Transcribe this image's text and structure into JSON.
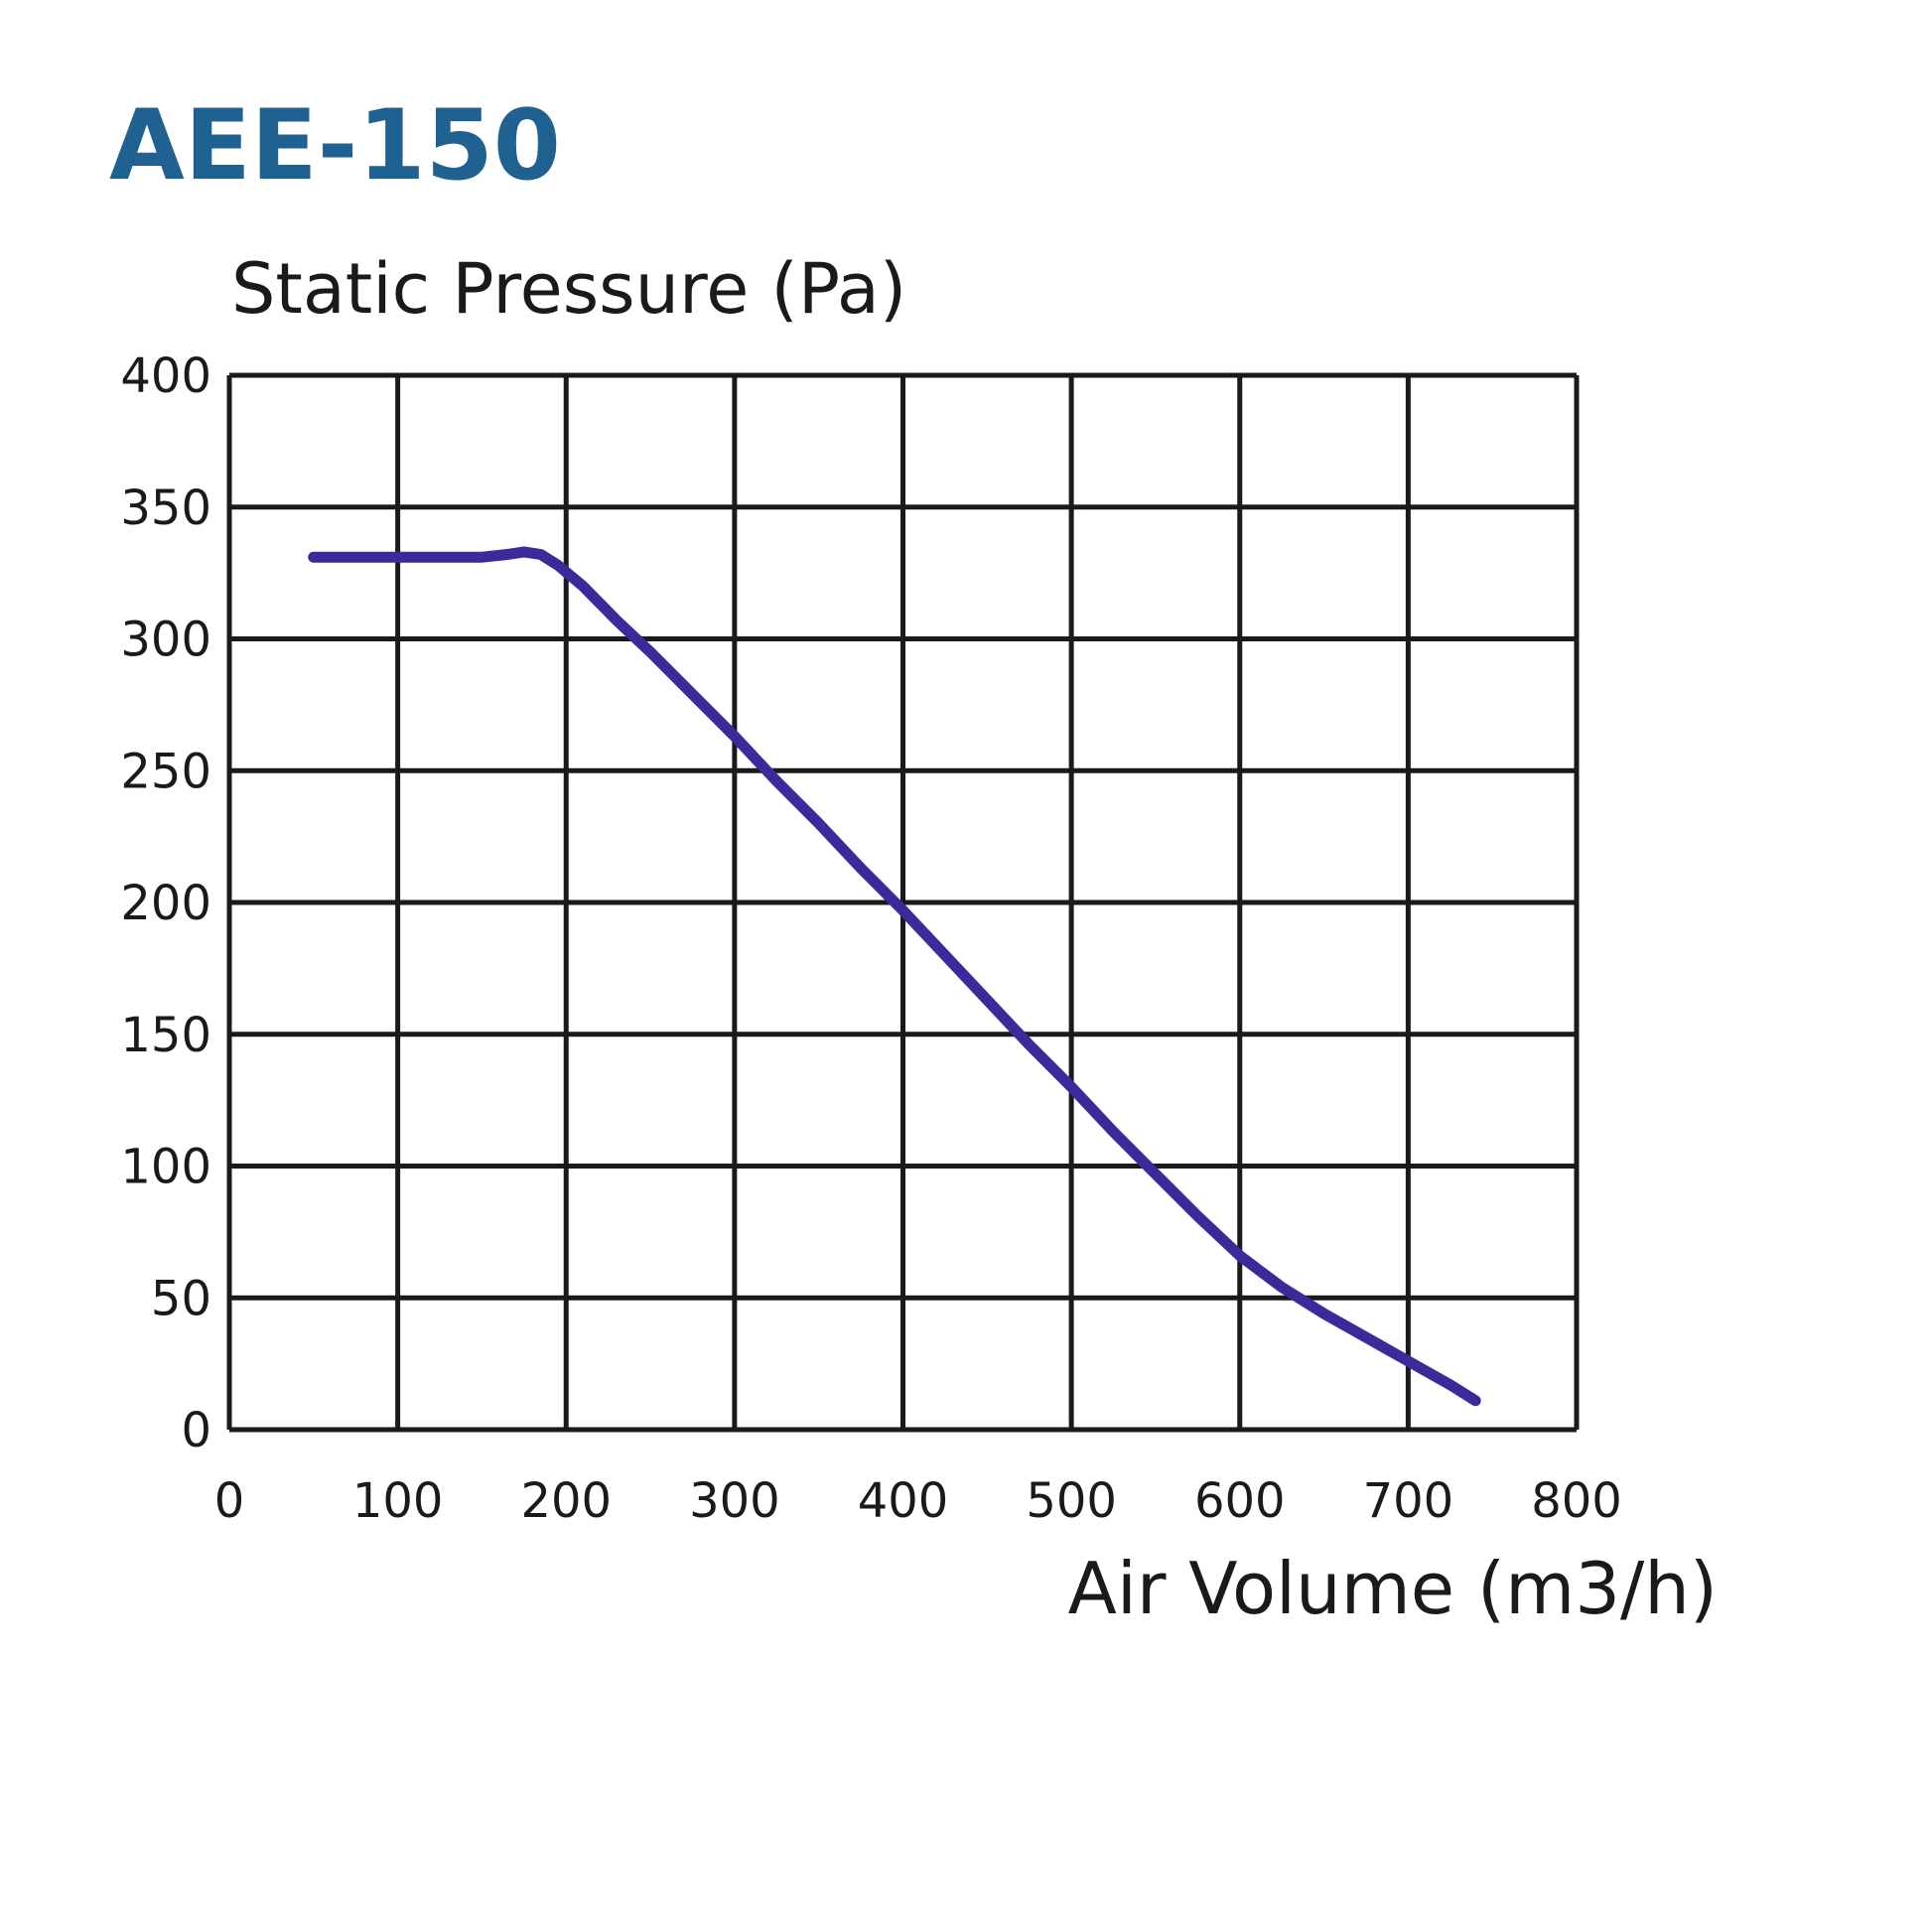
{
  "chart_data": {
    "type": "line",
    "title": "AEE-150",
    "xlabel": "Air Volume (m3/h)",
    "ylabel": "Static Pressure (Pa)",
    "xlim": [
      0,
      800
    ],
    "ylim": [
      0,
      400
    ],
    "x_ticks": [
      "0",
      "100",
      "200",
      "300",
      "400",
      "500",
      "600",
      "700",
      "800"
    ],
    "y_ticks": [
      "0",
      "50",
      "100",
      "150",
      "200",
      "250",
      "300",
      "350",
      "400"
    ],
    "grid": true,
    "legend": "none",
    "series": [
      {
        "color": "#3a2a9a",
        "x": [
          50,
          75,
          100,
          125,
          150,
          165,
          175,
          185,
          195,
          210,
          230,
          250,
          275,
          300,
          325,
          350,
          375,
          400,
          425,
          450,
          475,
          500,
          525,
          550,
          575,
          600,
          625,
          650,
          675,
          700,
          725,
          740
        ],
        "y": [
          331,
          331,
          331,
          331,
          331,
          332,
          333,
          332,
          328,
          320,
          307,
          295,
          279,
          263,
          246,
          230,
          213,
          197,
          180,
          163,
          146,
          130,
          113,
          97,
          81,
          66,
          54,
          44,
          35,
          26,
          17,
          11
        ]
      }
    ]
  }
}
